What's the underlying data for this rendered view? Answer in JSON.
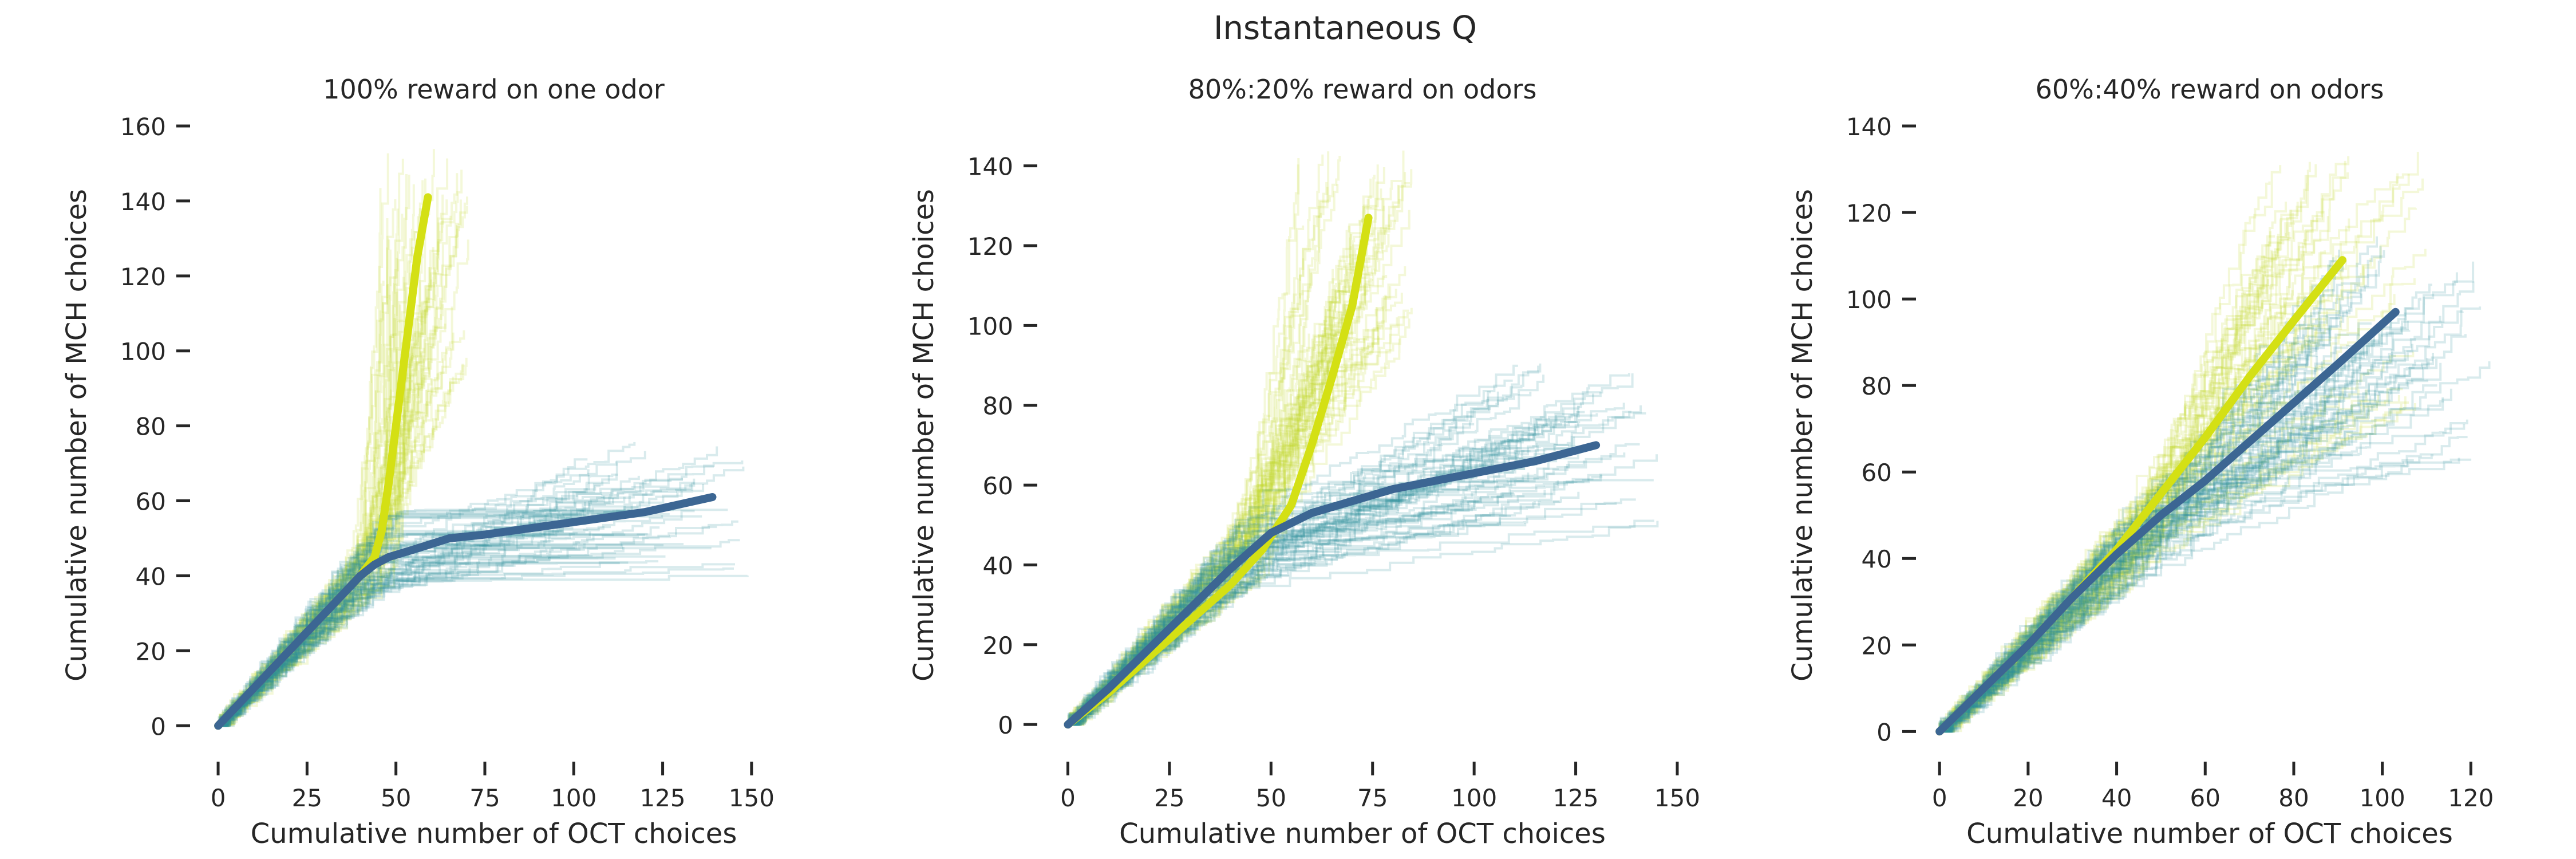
{
  "figure": {
    "suptitle": "Instantaneous Q"
  },
  "colors": {
    "yellow": "#d4e014",
    "yellow_thin": "#c3da2b",
    "teal": "#2a8f99",
    "blue": "#3c6693",
    "axis_text": "#262626"
  },
  "chart_data": [
    {
      "type": "line",
      "title": "100% reward on one odor",
      "xlabel": "Cumulative number of OCT choices",
      "ylabel": "Cumulative number of MCH choices",
      "xlim": [
        -5,
        160
      ],
      "ylim": [
        -5,
        160
      ],
      "xticks": [
        0,
        25,
        50,
        75,
        100,
        125,
        150
      ],
      "yticks": [
        0,
        20,
        40,
        60,
        80,
        100,
        120,
        140,
        160
      ],
      "grid": false,
      "legend": "none",
      "series": [
        {
          "color_key": "yellow",
          "style": "mean",
          "x": [
            0,
            5,
            10,
            20,
            30,
            40,
            44,
            46,
            48,
            50,
            52,
            54,
            56,
            59
          ],
          "y": [
            0,
            5,
            10,
            20,
            30,
            40,
            45,
            52,
            65,
            80,
            95,
            110,
            125,
            141
          ]
        },
        {
          "color_key": "blue",
          "style": "mean",
          "x": [
            0,
            10,
            20,
            30,
            40,
            44,
            48,
            55,
            65,
            75,
            90,
            105,
            120,
            139
          ],
          "y": [
            0,
            10,
            20,
            30,
            40,
            43,
            45,
            47,
            50,
            51,
            53,
            55,
            57,
            61
          ]
        },
        {
          "color_key": "yellow_thin",
          "style": "individual_runs",
          "run_count": 60,
          "end_x": [
            45,
            72
          ],
          "end_y": [
            92,
            155
          ]
        },
        {
          "color_key": "teal",
          "style": "individual_runs",
          "run_count": 60,
          "end_x": [
            95,
            152
          ],
          "end_y": [
            38,
            76
          ]
        }
      ]
    },
    {
      "type": "line",
      "title": "80%:20% reward on odors",
      "xlabel": "Cumulative number of OCT choices",
      "ylabel": "Cumulative number of MCH choices",
      "xlim": [
        -5,
        150
      ],
      "ylim": [
        -5,
        150
      ],
      "xticks": [
        0,
        25,
        50,
        75,
        100,
        125,
        150
      ],
      "yticks": [
        0,
        20,
        40,
        60,
        80,
        100,
        120,
        140
      ],
      "grid": false,
      "legend": "none",
      "series": [
        {
          "color_key": "yellow",
          "style": "mean",
          "x": [
            0,
            10,
            20,
            30,
            40,
            48,
            55,
            60,
            65,
            70,
            74
          ],
          "y": [
            0,
            8,
            17,
            26,
            35,
            44,
            55,
            70,
            87,
            105,
            127
          ]
        },
        {
          "color_key": "blue",
          "style": "mean",
          "x": [
            0,
            10,
            20,
            30,
            40,
            50,
            60,
            70,
            80,
            100,
            115,
            130
          ],
          "y": [
            0,
            9,
            19,
            29,
            39,
            48,
            53,
            56,
            59,
            63,
            66,
            70
          ]
        },
        {
          "color_key": "yellow_thin",
          "style": "individual_runs",
          "run_count": 60,
          "end_x": [
            55,
            85
          ],
          "end_y": [
            95,
            145
          ]
        },
        {
          "color_key": "teal",
          "style": "individual_runs",
          "run_count": 60,
          "end_x": [
            100,
            145
          ],
          "end_y": [
            50,
            90
          ]
        }
      ]
    },
    {
      "type": "line",
      "title": "60%:40% reward on odors",
      "xlabel": "Cumulative number of OCT choices",
      "ylabel": "Cumulative number of MCH choices",
      "xlim": [
        -3,
        125
      ],
      "ylim": [
        -3,
        140
      ],
      "xticks": [
        0,
        20,
        40,
        60,
        80,
        100,
        120
      ],
      "yticks": [
        0,
        20,
        40,
        60,
        80,
        100,
        120,
        140
      ],
      "grid": false,
      "legend": "none",
      "series": [
        {
          "color_key": "yellow",
          "style": "mean",
          "x": [
            0,
            10,
            20,
            30,
            40,
            50,
            60,
            70,
            80,
            91
          ],
          "y": [
            0,
            10,
            20,
            31,
            42,
            55,
            68,
            82,
            95,
            109
          ]
        },
        {
          "color_key": "blue",
          "style": "mean",
          "x": [
            0,
            10,
            20,
            30,
            40,
            50,
            60,
            70,
            80,
            90,
            103
          ],
          "y": [
            0,
            10,
            20,
            31,
            41,
            50,
            58,
            67,
            76,
            85,
            97
          ]
        },
        {
          "color_key": "yellow_thin",
          "style": "individual_runs",
          "run_count": 60,
          "end_x": [
            70,
            110
          ],
          "end_y": [
            75,
            135
          ]
        },
        {
          "color_key": "teal",
          "style": "individual_runs",
          "run_count": 60,
          "end_x": [
            85,
            124
          ],
          "end_y": [
            60,
            115
          ]
        }
      ]
    }
  ]
}
